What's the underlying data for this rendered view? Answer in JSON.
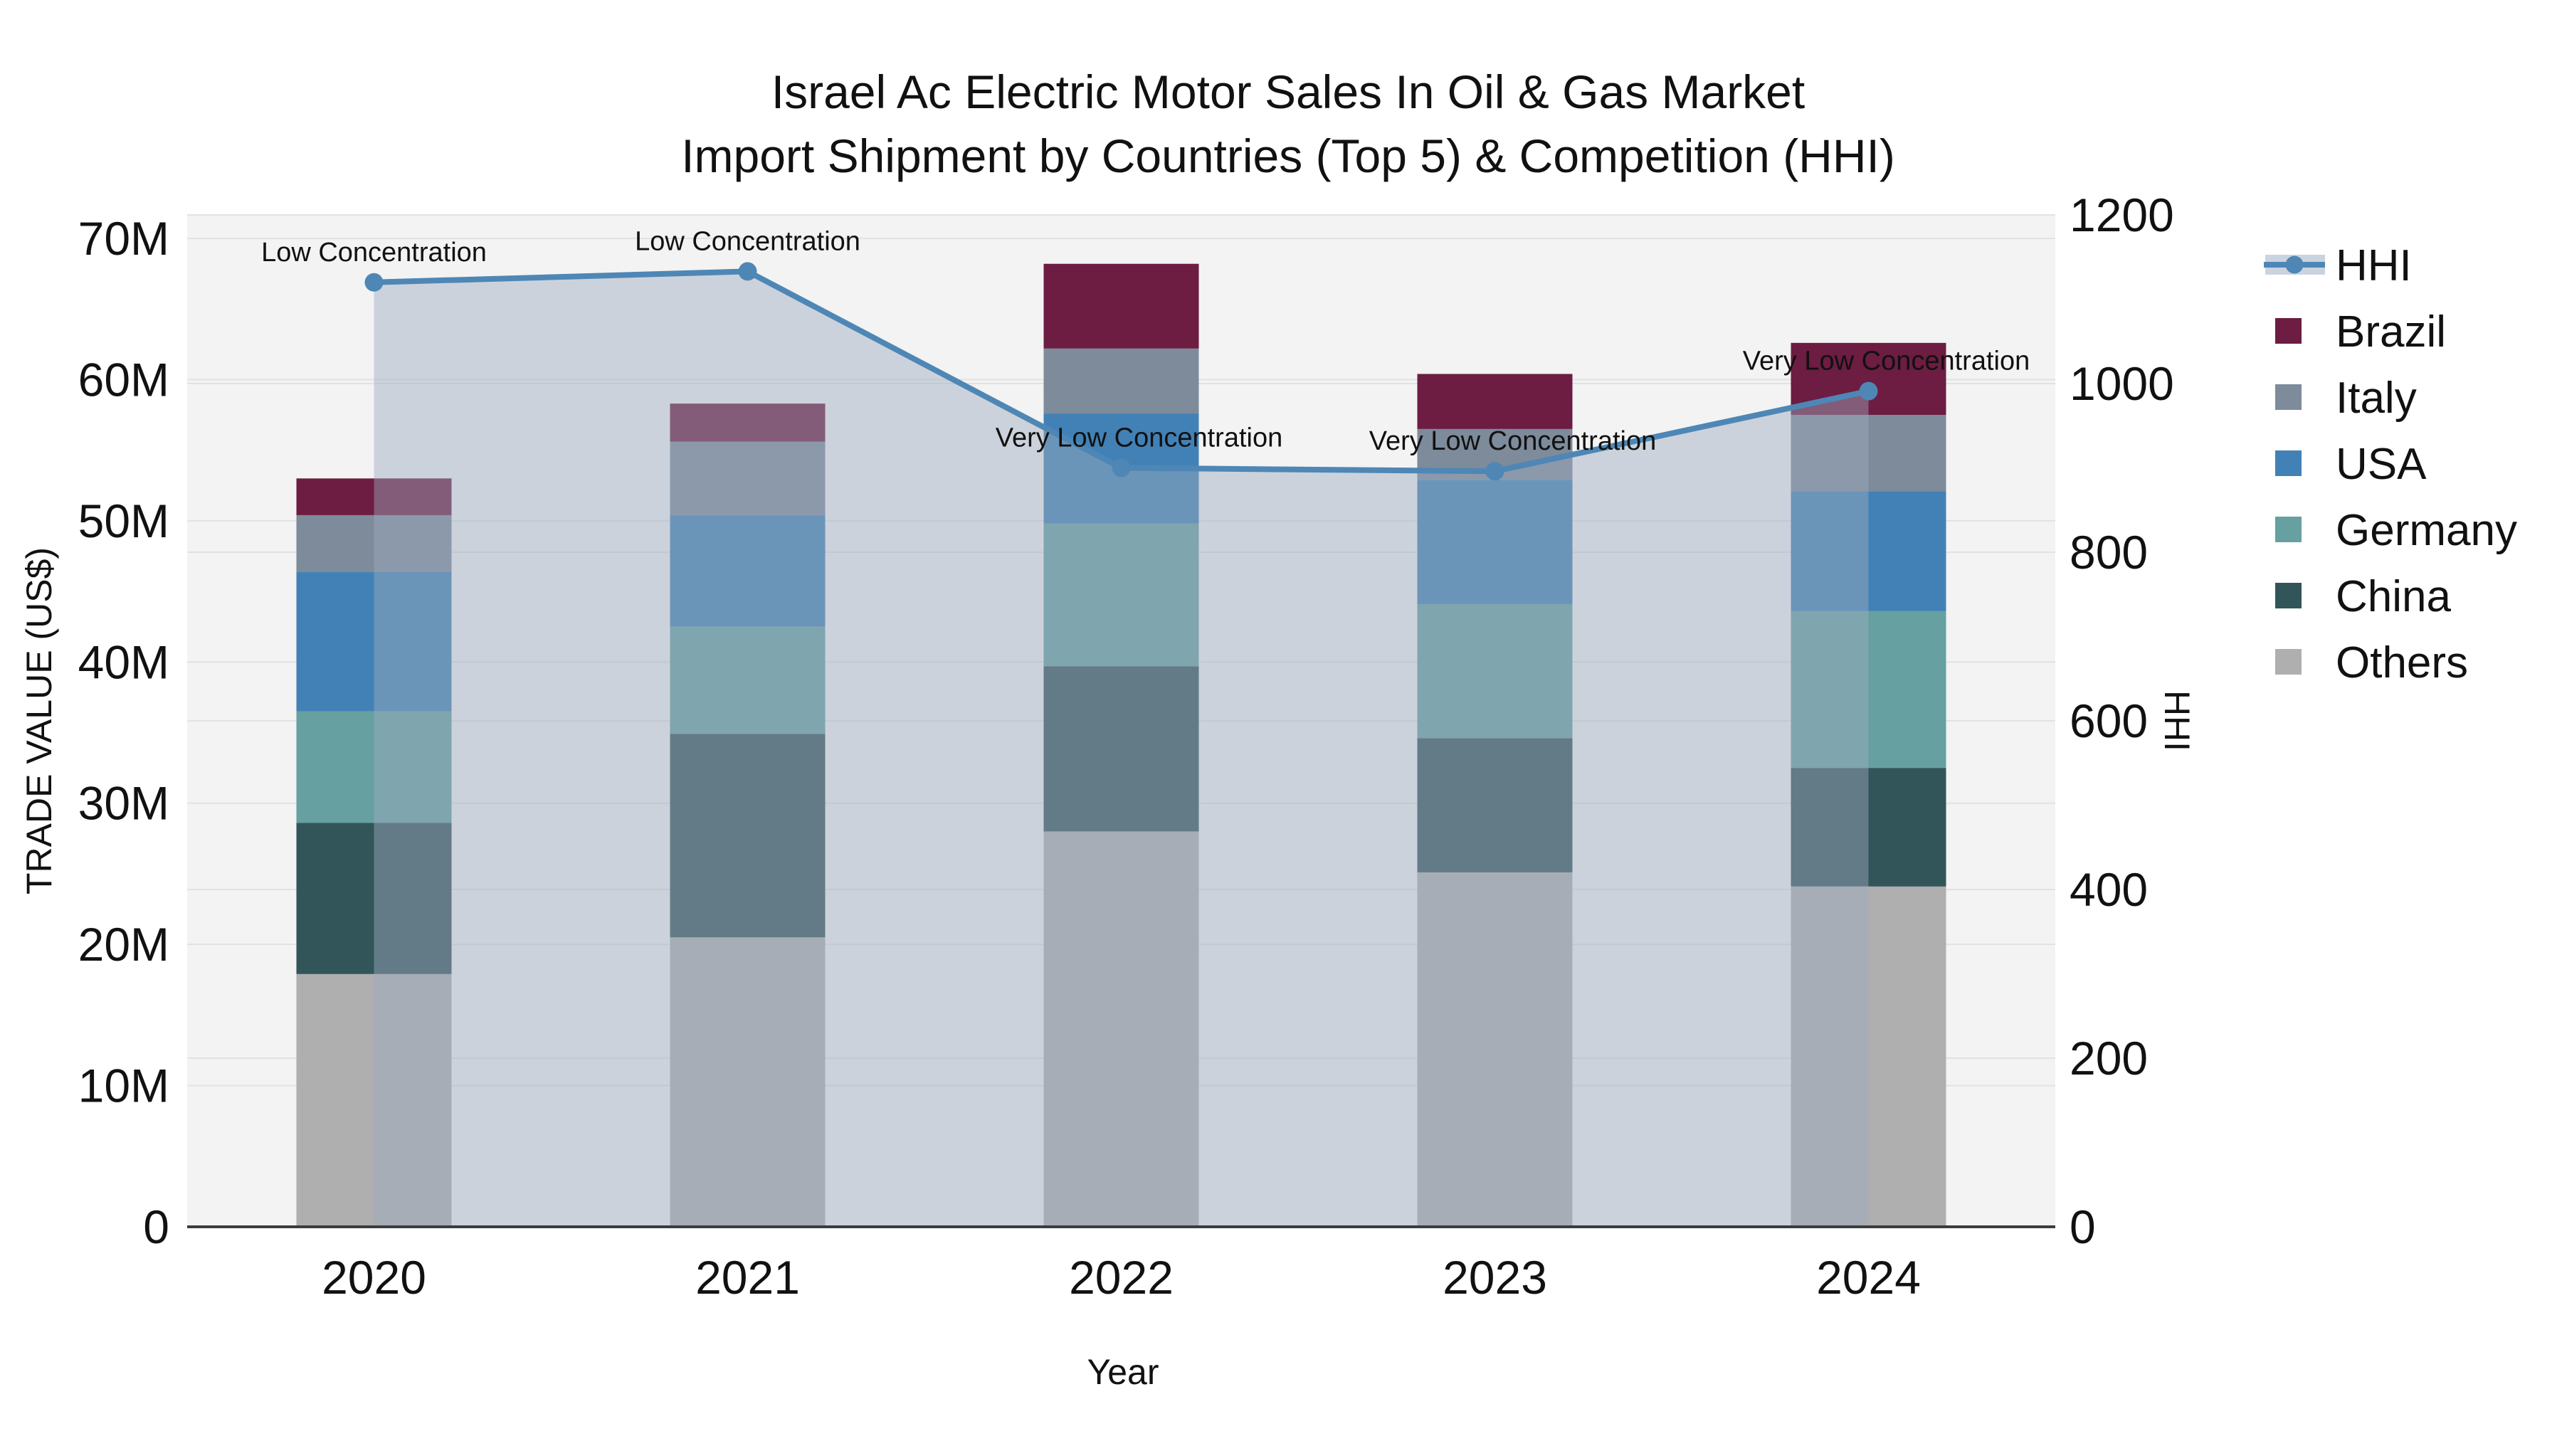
{
  "title": {
    "line1": "Israel Ac Electric Motor Sales In Oil & Gas Market",
    "line2": "Import Shipment by Countries (Top 5) & Competition (HHI)"
  },
  "axes": {
    "x": {
      "title": "Year",
      "tick_labels": [
        "2020",
        "2021",
        "2022",
        "2023",
        "2024"
      ]
    },
    "y_left": {
      "title": "TRADE VALUE (US$)",
      "tick_labels": [
        "0",
        "10M",
        "20M",
        "30M",
        "40M",
        "50M",
        "60M",
        "70M"
      ]
    },
    "y_right": {
      "title": "HHI",
      "tick_labels": [
        "0",
        "200",
        "400",
        "600",
        "800",
        "1000",
        "1200"
      ]
    }
  },
  "legend": {
    "items": [
      "HHI",
      "Brazil",
      "Italy",
      "USA",
      "Germany",
      "China",
      "Others"
    ]
  },
  "colors": {
    "plot_background": "#F3F3F3",
    "gridline": "#E2E2E2",
    "axis_line": "#3C3C3C",
    "hhi_line": "#4E87B5",
    "hhi_area": "#9EAABF",
    "legend_band": "#CAD3E0",
    "brazil": "#6C1D41",
    "italy": "#7D8B9B",
    "usa": "#4281B5",
    "germany": "#66A0A1",
    "china": "#325559",
    "others": "#AFAFAF"
  },
  "chart_data": {
    "type": "combo_stacked_bar_line",
    "title": "Israel Ac Electric Motor Sales In Oil & Gas Market — Import Shipment by Countries (Top 5) & Competition (HHI)",
    "xlabel": "Year",
    "ylabel_left": "TRADE VALUE (US$)",
    "ylabel_right": "HHI",
    "unit": "US$ millions",
    "categories": [
      "2020",
      "2021",
      "2022",
      "2023",
      "2024"
    ],
    "stack_order_bottom_to_top": [
      "Others",
      "China",
      "Germany",
      "USA",
      "Italy",
      "Brazil"
    ],
    "series": [
      {
        "name": "Others",
        "color_key": "others",
        "values": [
          17.9,
          20.5,
          28.0,
          25.1,
          24.1
        ]
      },
      {
        "name": "China",
        "color_key": "china",
        "values": [
          10.7,
          14.4,
          11.7,
          9.5,
          8.4
        ]
      },
      {
        "name": "Germany",
        "color_key": "germany",
        "values": [
          7.9,
          7.6,
          10.1,
          9.5,
          11.1
        ]
      },
      {
        "name": "USA",
        "color_key": "usa",
        "values": [
          9.9,
          7.9,
          7.8,
          8.8,
          8.5
        ]
      },
      {
        "name": "Italy",
        "color_key": "italy",
        "values": [
          4.0,
          5.2,
          4.6,
          3.6,
          5.4
        ]
      },
      {
        "name": "Brazil",
        "color_key": "brazil",
        "values": [
          2.6,
          2.7,
          6.0,
          3.9,
          5.1
        ]
      }
    ],
    "bar_totals": [
      53.0,
      58.3,
      68.2,
      60.4,
      62.6
    ],
    "line_series": {
      "name": "HHI",
      "axis": "right",
      "values": [
        1120,
        1133,
        900,
        896,
        991
      ],
      "color": "#4E87B5",
      "area_fill": "#9EAABF",
      "area_opacity": 0.45
    },
    "annotations": [
      "Low Concentration",
      "Low Concentration",
      "Very Low Concentration",
      "Very Low Concentration",
      "Very Low Concentration"
    ],
    "ylim_left_millions": [
      0,
      70
    ],
    "ylim_right": [
      0,
      1200
    ],
    "grid": true,
    "legend_position": "right"
  }
}
